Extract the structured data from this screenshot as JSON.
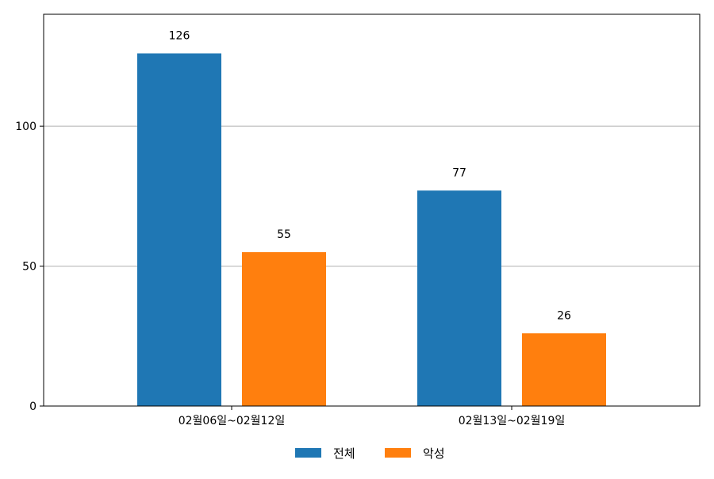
{
  "chart_data": {
    "type": "bar",
    "categories": [
      "02월06일~02월12일",
      "02월13일~02월19일"
    ],
    "series": [
      {
        "name": "전체",
        "values": [
          126,
          77
        ],
        "color": "#1f77b4"
      },
      {
        "name": "악성",
        "values": [
          55,
          26
        ],
        "color": "#ff7f0e"
      }
    ],
    "ylim": [
      0,
      140
    ],
    "yticks": [
      0,
      50,
      100
    ],
    "grid": "y",
    "legend_position": "bottom-center",
    "data_labels": true
  }
}
